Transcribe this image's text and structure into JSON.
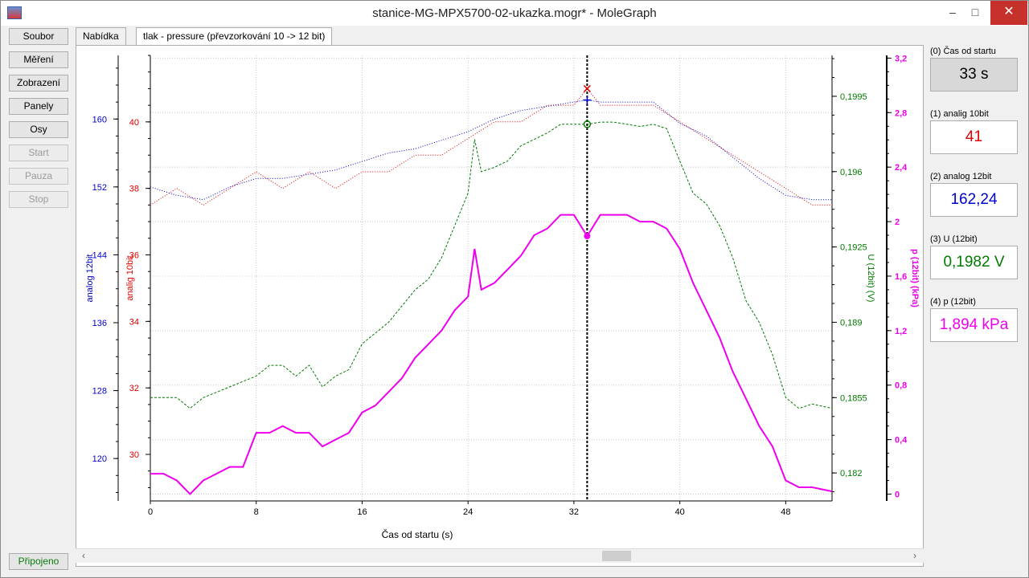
{
  "window": {
    "title": "stanice-MG-MPX5700-02-ukazka.mogr* - MoleGraph",
    "min_label": "–",
    "max_label": "□",
    "close_label": "✕"
  },
  "sidebar": {
    "buttons": [
      "Soubor",
      "Měření",
      "Zobrazení",
      "Panely",
      "Osy"
    ],
    "disabled_buttons": [
      "Start",
      "Pauza",
      "Stop"
    ],
    "status": "Připojeno"
  },
  "tabs": [
    {
      "label": "Nabídka"
    },
    {
      "label": "tlak - pressure (převzorkování 10 -> 12 bit)"
    }
  ],
  "channels": [
    {
      "label": "(0) Čas od startu",
      "value": "33 s",
      "color": "#000000"
    },
    {
      "label": "(1) analig 10bit",
      "value": "41",
      "color": "#e00000"
    },
    {
      "label": "(2) analog 12bit",
      "value": "162,24",
      "color": "#0000cc"
    },
    {
      "label": "(3) U (12bit)",
      "value": "0,1982 V",
      "color": "#007a00"
    },
    {
      "label": "(4) p (12bit)",
      "value": "1,894 kPa",
      "color": "#ee00ee"
    }
  ],
  "chart_data": {
    "type": "line",
    "xlabel": "Čas od startu (s)",
    "xlim": [
      0,
      51.5
    ],
    "x_ticks": [
      "0",
      "8",
      "16",
      "24",
      "32",
      "40",
      "48"
    ],
    "cursor_x": 33,
    "axes": [
      {
        "name": "analog 12bit",
        "color": "#0000cc",
        "lim": [
          115,
          167.5
        ],
        "ticks": [
          "120",
          "128",
          "136",
          "144",
          "152",
          "160"
        ]
      },
      {
        "name": "analig 10bit",
        "color": "#e00000",
        "lim": [
          28.6,
          42
        ],
        "ticks": [
          "30",
          "32",
          "34",
          "36",
          "38",
          "40"
        ]
      },
      {
        "name": "U (12bit) (V)",
        "color": "#007a00",
        "lim": [
          0.1807,
          0.2014
        ],
        "ticks": [
          "0,182",
          "0,1855",
          "0,189",
          "0,1925",
          "0,196",
          "0,1995"
        ]
      },
      {
        "name": "p (12bit) (kPa)",
        "color": "#ee00ee",
        "lim": [
          -0.05,
          3.22
        ],
        "ticks": [
          "0",
          "0,4",
          "0,8",
          "1,2",
          "1,6",
          "2",
          "2,4",
          "2,8",
          "3,2"
        ]
      }
    ],
    "series": [
      {
        "name": "analig 10bit",
        "color": "#e00000",
        "style": "dotted",
        "x": [
          0,
          2,
          4,
          6,
          8,
          10,
          12,
          14,
          16,
          18,
          20,
          22,
          24,
          26,
          28,
          30,
          32,
          33,
          34,
          36,
          38,
          40,
          42,
          44,
          46,
          48,
          50,
          51.5
        ],
        "y": [
          37.5,
          38,
          37.5,
          38,
          38.5,
          38,
          38.5,
          38,
          38.5,
          38.5,
          39,
          39,
          39.5,
          40,
          40,
          40.5,
          40.5,
          41,
          40.5,
          40.5,
          40.5,
          40,
          39.5,
          39,
          38.5,
          38,
          37.5,
          37.5
        ]
      },
      {
        "name": "analog 12bit",
        "color": "#0000cc",
        "style": "dotted",
        "x": [
          0,
          2,
          4,
          6,
          8,
          10,
          12,
          14,
          16,
          18,
          20,
          22,
          24,
          26,
          28,
          30,
          32,
          33,
          34,
          36,
          38,
          40,
          42,
          44,
          46,
          48,
          50,
          51.5
        ],
        "y": [
          152,
          151,
          150.5,
          152,
          153,
          153,
          153.5,
          154,
          155,
          156,
          156.5,
          157.5,
          158.5,
          160,
          161,
          161.5,
          162,
          162.24,
          162,
          162,
          162,
          159.5,
          158,
          155.5,
          153,
          151,
          150.5,
          150.5
        ]
      },
      {
        "name": "U (12bit)",
        "color": "#007a00",
        "style": "dashed",
        "x": [
          0,
          2,
          3,
          4,
          6,
          8,
          9,
          10,
          11,
          12,
          13,
          14,
          15,
          16,
          17,
          18,
          20,
          21,
          22,
          23,
          24,
          24.5,
          25,
          26,
          27,
          28,
          29,
          30,
          31,
          32,
          33,
          34,
          35,
          36,
          37,
          38,
          39,
          40,
          41,
          42,
          43,
          44,
          45,
          46,
          47,
          48,
          49,
          50,
          51.5
        ],
        "y": [
          0.1855,
          0.1855,
          0.185,
          0.1855,
          0.186,
          0.1865,
          0.187,
          0.187,
          0.1865,
          0.187,
          0.186,
          0.1865,
          0.1868,
          0.188,
          0.1885,
          0.189,
          0.1905,
          0.191,
          0.192,
          0.1935,
          0.195,
          0.1975,
          0.196,
          0.1962,
          0.1965,
          0.1972,
          0.1975,
          0.1978,
          0.1982,
          0.1982,
          0.1982,
          0.1983,
          0.1983,
          0.1982,
          0.1981,
          0.1982,
          0.198,
          0.1965,
          0.195,
          0.1945,
          0.1935,
          0.192,
          0.19,
          0.189,
          0.1875,
          0.1855,
          0.185,
          0.1852,
          0.185
        ]
      },
      {
        "name": "p (12bit)",
        "color": "#ee00ee",
        "style": "solid",
        "x": [
          0,
          1,
          2,
          3,
          4,
          5,
          6,
          7,
          8,
          9,
          10,
          11,
          12,
          13,
          14,
          15,
          16,
          17,
          18,
          19,
          20,
          21,
          22,
          23,
          24,
          24.5,
          25,
          26,
          27,
          28,
          29,
          30,
          31,
          32,
          33,
          34,
          35,
          36,
          37,
          38,
          39,
          40,
          41,
          42,
          43,
          44,
          45,
          46,
          47,
          48,
          49,
          50,
          51.5
        ],
        "y": [
          0.15,
          0.15,
          0.1,
          0.0,
          0.1,
          0.15,
          0.2,
          0.2,
          0.45,
          0.45,
          0.5,
          0.45,
          0.45,
          0.35,
          0.4,
          0.45,
          0.6,
          0.65,
          0.75,
          0.85,
          1.0,
          1.1,
          1.2,
          1.35,
          1.45,
          1.8,
          1.5,
          1.55,
          1.65,
          1.75,
          1.9,
          1.95,
          2.05,
          2.05,
          1.894,
          2.05,
          2.05,
          2.05,
          2.0,
          2.0,
          1.95,
          1.8,
          1.55,
          1.35,
          1.15,
          0.9,
          0.7,
          0.5,
          0.35,
          0.1,
          0.05,
          0.05,
          0.02
        ]
      }
    ]
  }
}
